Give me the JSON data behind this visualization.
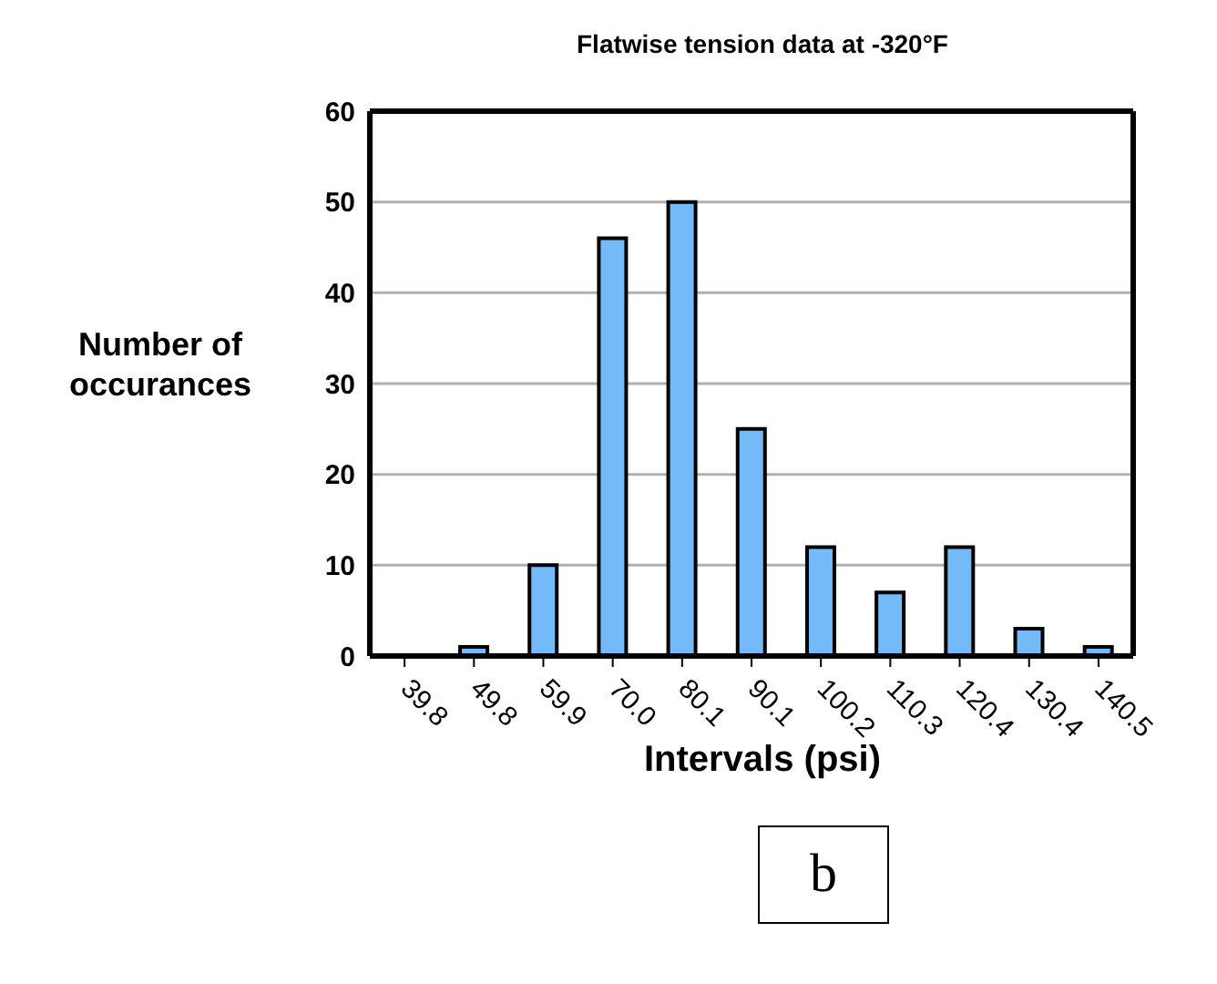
{
  "chart_data": {
    "type": "bar",
    "title": "Flatwise tension data at -320°F",
    "xlabel": "Intervals (psi)",
    "ylabel": "Number of occurances",
    "categories": [
      "39.8",
      "49.8",
      "59.9",
      "70.0",
      "80.1",
      "90.1",
      "100.2",
      "110.3",
      "120.4",
      "130.4",
      "140.5"
    ],
    "values": [
      0,
      1,
      10,
      46,
      50,
      25,
      12,
      7,
      12,
      3,
      1
    ],
    "color": "#74b9f8",
    "ylim": [
      0,
      60
    ],
    "yticks": [
      0,
      10,
      20,
      30,
      40,
      50,
      60
    ],
    "grid": "y",
    "annotations": [
      "b"
    ]
  }
}
